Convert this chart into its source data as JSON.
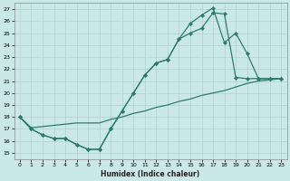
{
  "xlabel": "Humidex (Indice chaleur)",
  "bg_color": "#cbe8e8",
  "grid_color": "#b0d0d0",
  "line_color": "#2e7b6e",
  "xlim": [
    -0.5,
    23.5
  ],
  "ylim": [
    14.5,
    27.5
  ],
  "xticks": [
    0,
    1,
    2,
    3,
    4,
    5,
    6,
    7,
    8,
    9,
    10,
    11,
    12,
    13,
    14,
    15,
    16,
    17,
    18,
    19,
    20,
    21,
    22,
    23
  ],
  "yticks": [
    15,
    16,
    17,
    18,
    19,
    20,
    21,
    22,
    23,
    24,
    25,
    26,
    27
  ],
  "line1_x": [
    0,
    1,
    2,
    3,
    4,
    5,
    6,
    7,
    8,
    9,
    10,
    11,
    12,
    13,
    14,
    15,
    16,
    17,
    18,
    19,
    20,
    21,
    22,
    23
  ],
  "line1_y": [
    18,
    17,
    16.5,
    16.2,
    16.2,
    15.7,
    15.3,
    15.3,
    17.0,
    18.5,
    20.0,
    21.5,
    22.5,
    22.8,
    24.5,
    25.8,
    26.5,
    27.1,
    24.2,
    25.0,
    23.3,
    21.2,
    21.2,
    21.2
  ],
  "line2_x": [
    0,
    1,
    2,
    3,
    4,
    5,
    6,
    7,
    8,
    9,
    10,
    11,
    12,
    13,
    14,
    15,
    16,
    17,
    18,
    19,
    20,
    21,
    22,
    23
  ],
  "line2_y": [
    18,
    17,
    16.5,
    16.2,
    16.2,
    15.7,
    15.3,
    15.3,
    17.0,
    18.5,
    20.0,
    21.5,
    22.5,
    22.8,
    24.5,
    25.0,
    25.4,
    26.7,
    26.6,
    21.3,
    21.2,
    21.2,
    21.2,
    21.2
  ],
  "line3_x": [
    0,
    1,
    2,
    3,
    4,
    5,
    6,
    7,
    8,
    9,
    10,
    11,
    12,
    13,
    14,
    15,
    16,
    17,
    18,
    19,
    20,
    21,
    22,
    23
  ],
  "line3_y": [
    18,
    17.1,
    17.2,
    17.3,
    17.4,
    17.5,
    17.5,
    17.5,
    17.8,
    18.0,
    18.3,
    18.5,
    18.8,
    19.0,
    19.3,
    19.5,
    19.8,
    20.0,
    20.2,
    20.5,
    20.8,
    21.0,
    21.1,
    21.2
  ]
}
